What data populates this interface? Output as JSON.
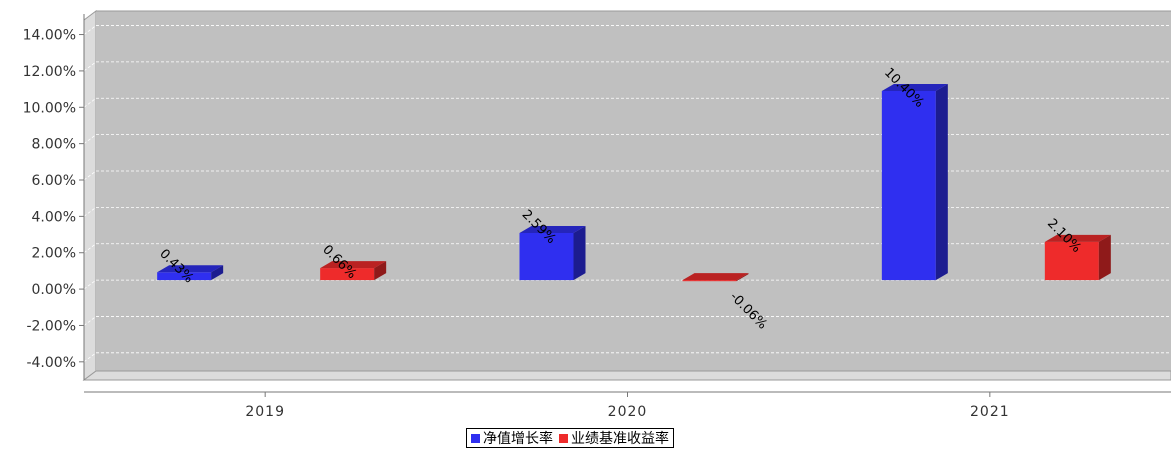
{
  "chart_data": {
    "type": "bar",
    "categories": [
      "2019",
      "2020",
      "2021"
    ],
    "series": [
      {
        "name": "净值增长率",
        "color": "#2f2ff0",
        "values": [
          0.43,
          2.59,
          10.4
        ],
        "labels": [
          "0.43%",
          "2.59%",
          "10.40%"
        ]
      },
      {
        "name": "业绩基准收益率",
        "color": "#ee2b2b",
        "values": [
          0.66,
          -0.06,
          2.1
        ],
        "labels": [
          "0.66%",
          "-0.06%",
          "2.10%"
        ]
      }
    ],
    "y_ticks": [
      "14.00%",
      "12.00%",
      "10.00%",
      "8.00%",
      "6.00%",
      "4.00%",
      "2.00%",
      "0.00%",
      "-2.00%",
      "-4.00%"
    ],
    "ylim": [
      -5,
      14.8
    ],
    "grid": true,
    "legend_position": "bottom-center",
    "title": "",
    "xlabel": "",
    "ylabel": ""
  }
}
